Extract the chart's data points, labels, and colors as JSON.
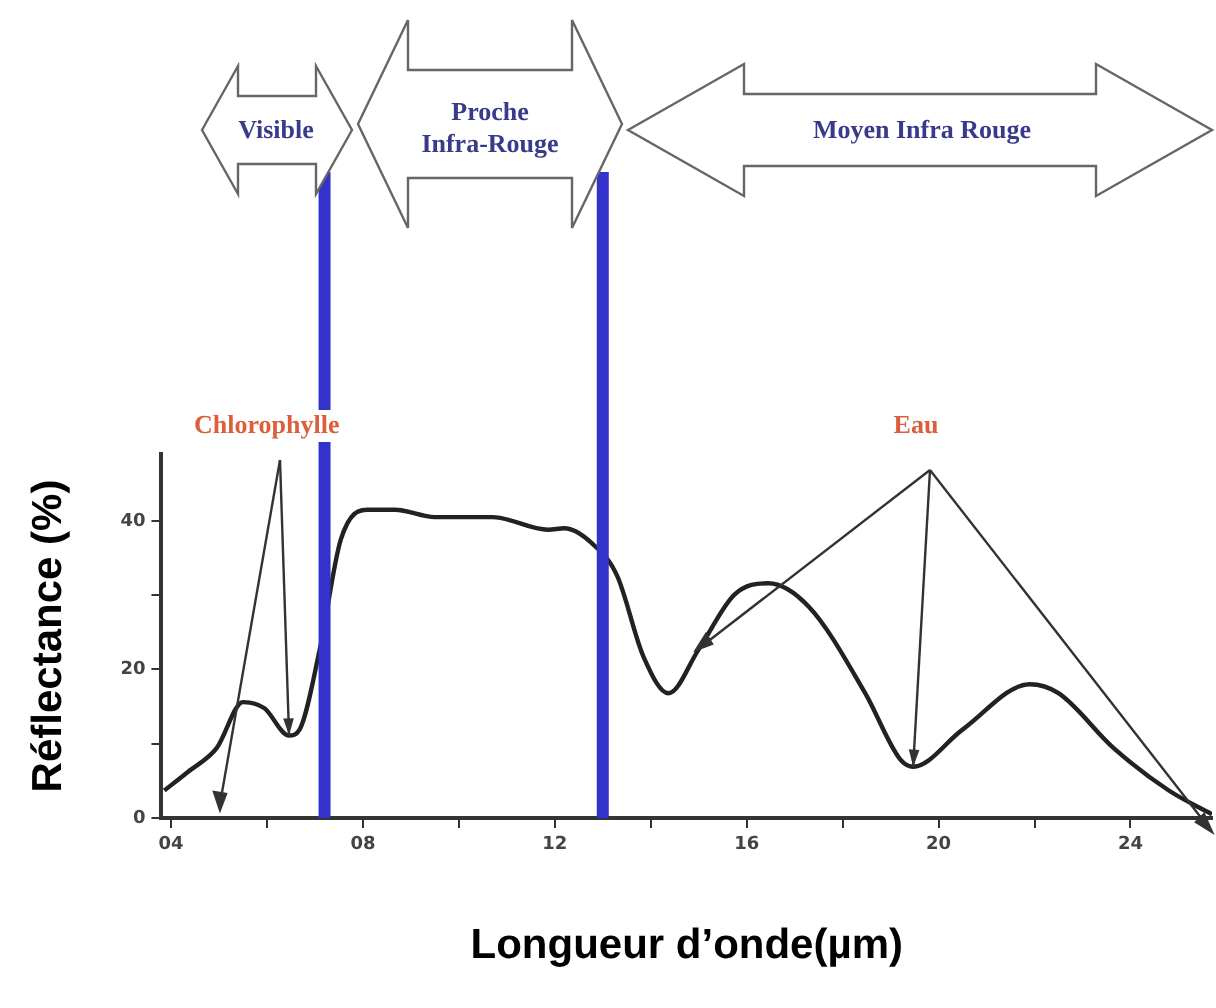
{
  "chart_data": {
    "type": "line",
    "xlabel": "Longueur d’onde(µm)",
    "ylabel": "Réflectance (%)",
    "x": [
      3.86,
      4.35,
      4.95,
      5.5,
      5.94,
      6.46,
      6.68,
      7.1,
      7.54,
      8.1,
      8.67,
      9.5,
      10.7,
      11.86,
      12.2,
      12.77,
      13.3,
      13.85,
      14.37,
      15,
      15.75,
      16.45,
      17.3,
      18.47,
      19.2,
      19.47,
      20.5,
      21.9,
      22.5,
      23.65,
      24.8,
      25.7
    ],
    "series": [
      {
        "color": "#222222",
        "values": [
          3.7,
          6.2,
          9.4,
          15.6,
          14.8,
          11.1,
          11.9,
          22.7,
          37.5,
          41.5,
          41.5,
          40.5,
          40.5,
          38.8,
          39,
          37,
          32.6,
          21.7,
          16.8,
          22.7,
          30.1,
          31.6,
          28.4,
          16.8,
          7.9,
          6.9,
          11.9,
          18,
          16.8,
          9.4,
          3.7,
          0.5
        ]
      }
    ],
    "xlim": [
      3.8,
      25.7
    ],
    "ylim": [
      0,
      49
    ],
    "xticks": [
      {
        "value": 4,
        "label": "04"
      },
      {
        "value": 6,
        "label": null
      },
      {
        "value": 8,
        "label": "08"
      },
      {
        "value": 10,
        "label": null
      },
      12,
      {
        "value": 14,
        "label": null
      },
      16,
      {
        "value": 18,
        "label": null
      },
      20,
      {
        "value": 22,
        "label": null
      },
      24
    ],
    "yticks": [
      0,
      {
        "value": 10,
        "label": null
      },
      20,
      {
        "value": 30,
        "label": null
      },
      40
    ],
    "ref_lines": [
      {
        "axis": "x",
        "value": 7.2,
        "color": "#3333cc"
      },
      {
        "axis": "x",
        "value": 13,
        "color": "#3333cc"
      }
    ],
    "annotations": [
      "Visible",
      "Proche Infra-Rouge",
      "Moyen Infra Rouge",
      {
        "text": "Chlorophylle",
        "x": 6.46,
        "y": 11.1
      },
      {
        "text": "Eau",
        "x": 19.47,
        "y": 6.9
      }
    ],
    "grid": false,
    "legend": false,
    "marker": "none",
    "line_style": "solid"
  }
}
